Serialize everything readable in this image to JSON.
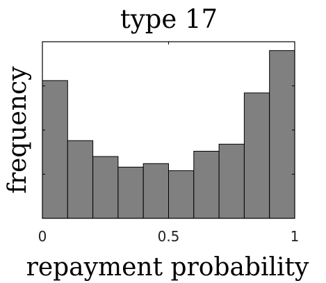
{
  "chart_data": {
    "type": "bar",
    "title": "type 17",
    "xlabel": "repayment probability",
    "ylabel": "frequency",
    "bin_edges": [
      0,
      0.1,
      0.2,
      0.3,
      0.4,
      0.5,
      0.6,
      0.7,
      0.8,
      0.9,
      1.0
    ],
    "values": [
      0.78,
      0.44,
      0.35,
      0.29,
      0.31,
      0.27,
      0.38,
      0.42,
      0.71,
      0.95
    ],
    "xlim": [
      0,
      1
    ],
    "ylim": [
      0,
      1
    ],
    "x_ticks": [
      0,
      0.5,
      1
    ],
    "x_tick_labels": [
      "0",
      "0.5",
      "1"
    ],
    "y_tick_labels_shown": false,
    "grid": false,
    "bar_color": "#808080",
    "bar_edge_color": "#000000"
  }
}
